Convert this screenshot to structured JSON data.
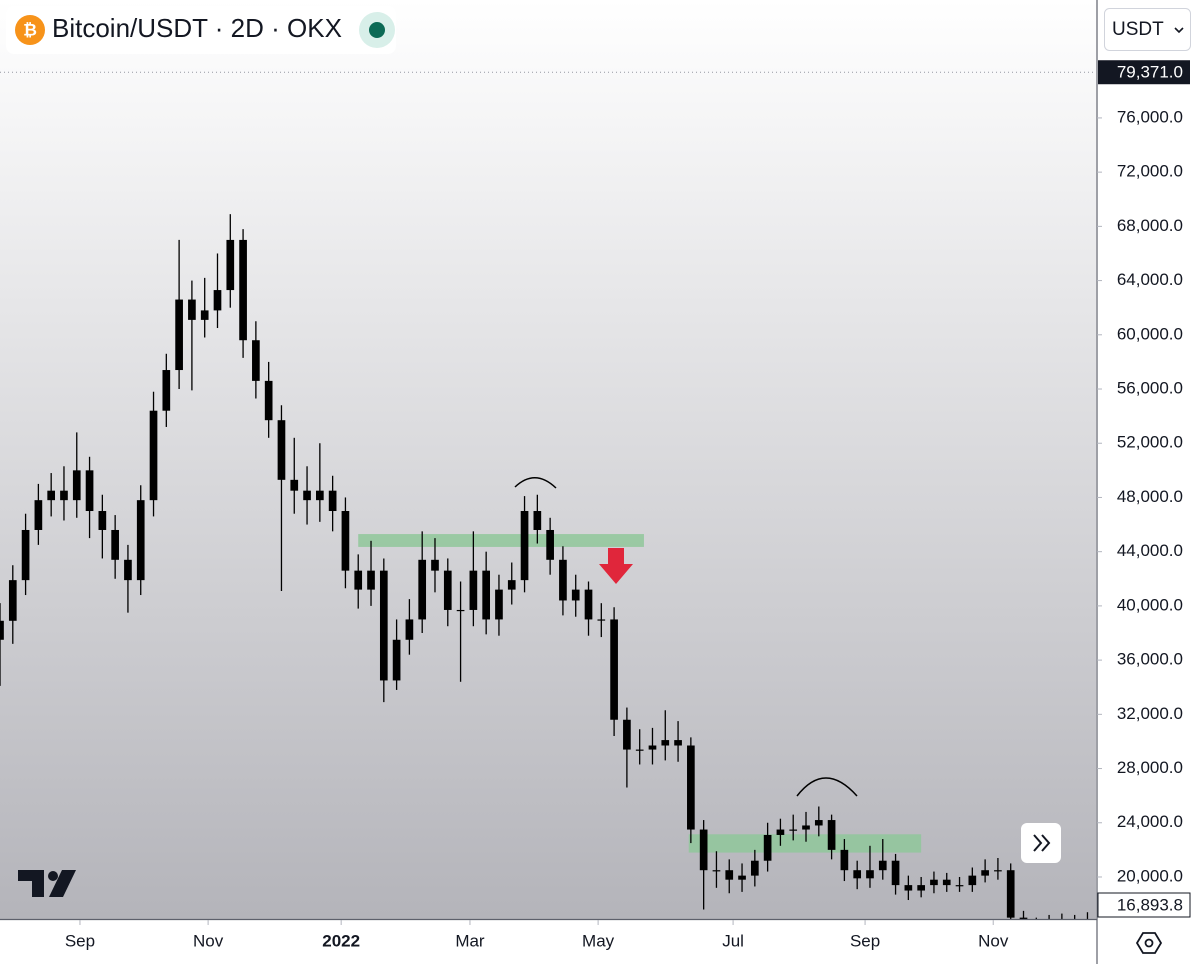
{
  "chart_data": {
    "type": "candlestick",
    "title": "Bitcoin/USDT · 2D · OKX",
    "currency": "USDT",
    "up_color": "#000000",
    "down_color": "#000000",
    "grid": false,
    "x": [
      0,
      6,
      12,
      18,
      24,
      30,
      36,
      42,
      48,
      54,
      60,
      66,
      72,
      78,
      84,
      90,
      96,
      102,
      108,
      114,
      120,
      126,
      132,
      138,
      144,
      150,
      156,
      162,
      168,
      174,
      180,
      186,
      192,
      198,
      204,
      210,
      216,
      222,
      228,
      234,
      240,
      246,
      252,
      258,
      264,
      270,
      276,
      282,
      288,
      294,
      300,
      306,
      312,
      318,
      324,
      330,
      336,
      342,
      348,
      354,
      360,
      366,
      372,
      378,
      384,
      390,
      396,
      402,
      408,
      414,
      420,
      426,
      432,
      438,
      444,
      450,
      456,
      462,
      468,
      474,
      480,
      486,
      492,
      498,
      504,
      510
    ],
    "open": [
      37500,
      38900,
      41900,
      45600,
      47800,
      48500,
      47800,
      50000,
      47000,
      45600,
      43400,
      41900,
      47800,
      54400,
      57400,
      62600,
      61100,
      61800,
      63300,
      67000,
      59600,
      56600,
      53700,
      49300,
      48500,
      47800,
      48500,
      47000,
      42600,
      41200,
      42600,
      34500,
      37500,
      39000,
      43400,
      42600,
      39700,
      39700,
      42600,
      39000,
      41200,
      41900,
      47000,
      45600,
      43400,
      40400,
      41200,
      39000,
      39000,
      31600,
      29400,
      29400,
      29700,
      30100,
      29700,
      23500,
      20500,
      20500,
      19800,
      20100,
      21200,
      23100,
      23500,
      23500,
      23800,
      24200,
      22000,
      20500,
      19900,
      20500,
      21200,
      19400,
      19000,
      19400,
      19800,
      19400,
      19400,
      20100,
      20500,
      20500,
      17000,
      16400,
      16600,
      16800,
      16900,
      16800
    ],
    "high": [
      40200,
      43000,
      46800,
      49000,
      49800,
      50300,
      52800,
      51000,
      48200,
      46700,
      44500,
      48900,
      55800,
      58600,
      67000,
      64000,
      64200,
      66000,
      68900,
      67800,
      61000,
      58000,
      54800,
      52400,
      50300,
      52000,
      49600,
      48000,
      43800,
      44800,
      43500,
      39000,
      40500,
      45500,
      45000,
      43500,
      41800,
      45500,
      44000,
      42300,
      43200,
      48100,
      48200,
      46500,
      44400,
      42300,
      41800,
      40200,
      39900,
      32500,
      30900,
      31000,
      32300,
      31500,
      30300,
      24200,
      21900,
      21300,
      21000,
      22000,
      24000,
      24300,
      24600,
      24800,
      25200,
      24600,
      22800,
      21200,
      22300,
      22800,
      21700,
      20100,
      20000,
      20400,
      20300,
      20000,
      20700,
      21300,
      21400,
      21000,
      17500,
      17000,
      17200,
      17300,
      17200,
      17400
    ],
    "low": [
      34100,
      37200,
      40800,
      44500,
      46600,
      46300,
      46500,
      45000,
      43500,
      42000,
      39500,
      40800,
      46600,
      53200,
      56000,
      55900,
      59800,
      60500,
      62000,
      58300,
      55300,
      52400,
      41100,
      46800,
      46000,
      46200,
      45500,
      41300,
      39800,
      40000,
      32900,
      33800,
      36400,
      38000,
      41000,
      38500,
      34400,
      38500,
      37900,
      37800,
      40100,
      41000,
      44600,
      42300,
      39300,
      39200,
      37800,
      37700,
      30400,
      26600,
      28300,
      28300,
      28600,
      28500,
      22500,
      17600,
      19200,
      18800,
      18900,
      19300,
      20400,
      22300,
      22700,
      22600,
      23000,
      21300,
      19700,
      19100,
      19200,
      19800,
      18700,
      18300,
      18500,
      18800,
      18900,
      18900,
      18900,
      19600,
      19800,
      16500,
      15600,
      15800,
      16100,
      16300,
      16300,
      16400
    ],
    "close": [
      38900,
      41900,
      45600,
      47800,
      48500,
      47800,
      50000,
      47000,
      45600,
      43400,
      41900,
      47800,
      54400,
      57400,
      62600,
      61100,
      61800,
      63300,
      67000,
      59600,
      56600,
      53700,
      49300,
      48500,
      47800,
      48500,
      47000,
      42600,
      41200,
      42600,
      34500,
      37500,
      39000,
      43400,
      42600,
      39700,
      39700,
      42600,
      39000,
      41200,
      41900,
      47000,
      45600,
      43400,
      40400,
      41200,
      39000,
      39000,
      31600,
      29400,
      29400,
      29700,
      30100,
      29700,
      23500,
      20500,
      20500,
      19800,
      20100,
      21200,
      23100,
      23500,
      23500,
      23800,
      24200,
      22000,
      20500,
      19900,
      20500,
      21200,
      19400,
      19000,
      19400,
      19800,
      19400,
      19400,
      20100,
      20500,
      20500,
      17000,
      16400,
      16600,
      16800,
      16900,
      16800,
      16900
    ],
    "xlim": [
      0,
      514
    ],
    "xticks": [
      {
        "value": 37.5,
        "label": "Sep"
      },
      {
        "value": 97.6,
        "label": "Nov"
      },
      {
        "value": 160,
        "label": "2022"
      },
      {
        "value": 220.4,
        "label": "Mar"
      },
      {
        "value": 280.5,
        "label": "May"
      },
      {
        "value": 343.8,
        "label": "Jul"
      },
      {
        "value": 405.7,
        "label": "Sep"
      },
      {
        "value": 465.8,
        "label": "Nov"
      }
    ],
    "ylim": [
      16900,
      84700
    ],
    "yticks": [
      {
        "value": 20000,
        "label": "20,000.0"
      },
      {
        "value": 24000,
        "label": "24,000.0"
      },
      {
        "value": 28000,
        "label": "28,000.0"
      },
      {
        "value": 32000,
        "label": "32,000.0"
      },
      {
        "value": 36000,
        "label": "36,000.0"
      },
      {
        "value": 40000,
        "label": "40,000.0"
      },
      {
        "value": 44000,
        "label": "44,000.0"
      },
      {
        "value": 48000,
        "label": "48,000.0"
      },
      {
        "value": 52000,
        "label": "52,000.0"
      },
      {
        "value": 56000,
        "label": "56,000.0"
      },
      {
        "value": 60000,
        "label": "60,000.0"
      },
      {
        "value": 64000,
        "label": "64,000.0"
      },
      {
        "value": 68000,
        "label": "68,000.0"
      },
      {
        "value": 72000,
        "label": "72,000.0"
      },
      {
        "value": 76000,
        "label": "76,000.0"
      }
    ],
    "price_markers": [
      {
        "value": 79371,
        "label": "79,371.0",
        "color": "#131722"
      },
      {
        "value": 16893.8,
        "label": "16,893.8",
        "color": "#ffffff"
      }
    ],
    "zones": [
      {
        "x": [
          168,
          302
        ],
        "y": [
          44350,
          45300
        ],
        "color": "#8fc79a"
      },
      {
        "x": [
          323,
          432
        ],
        "y": [
          21800,
          23150
        ],
        "color": "#8fc79a"
      }
    ]
  }
}
